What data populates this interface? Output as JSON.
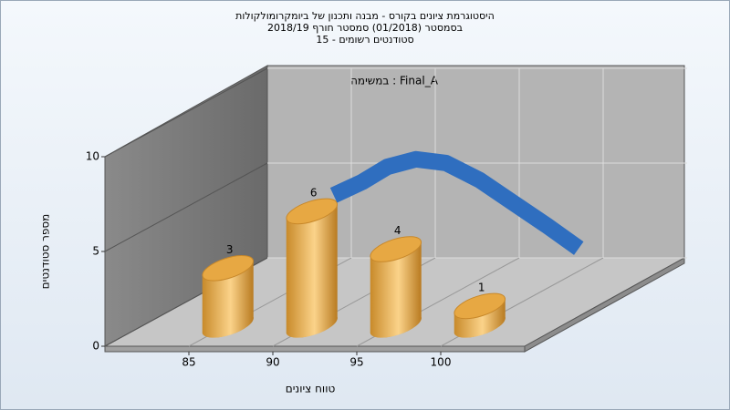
{
  "chart_data": {
    "type": "bar3d",
    "title": [
      "היסטוגרמת ציונים בקורס - מבנה ותכנון של ביומקרומולקולות",
      "בסמסטר  (01/2018)  סמסטר חורף 2018/19",
      "סטודנטים רשומים - 15"
    ],
    "annotation": "במשימה : Final_A",
    "x_label": "טווח ציונים",
    "y_label": "מספר סטודנטים",
    "categories": [
      85,
      90,
      95,
      100
    ],
    "values": [
      3,
      6,
      4,
      1
    ],
    "color": "#e2a23c",
    "curve": {
      "color": "#2f6ebf",
      "x": [
        88.3,
        90,
        91.5,
        93.2,
        95,
        97,
        99,
        101,
        102.9
      ],
      "values": [
        5.4,
        6.1,
        6.9,
        7.3,
        7.1,
        6.2,
        5.0,
        3.8,
        2.6
      ]
    },
    "xlim": [
      80,
      105
    ],
    "xticks": [
      85,
      90,
      95,
      100
    ],
    "ylim": [
      0,
      10
    ],
    "yticks": [
      0,
      5,
      10
    ],
    "grid": true
  }
}
